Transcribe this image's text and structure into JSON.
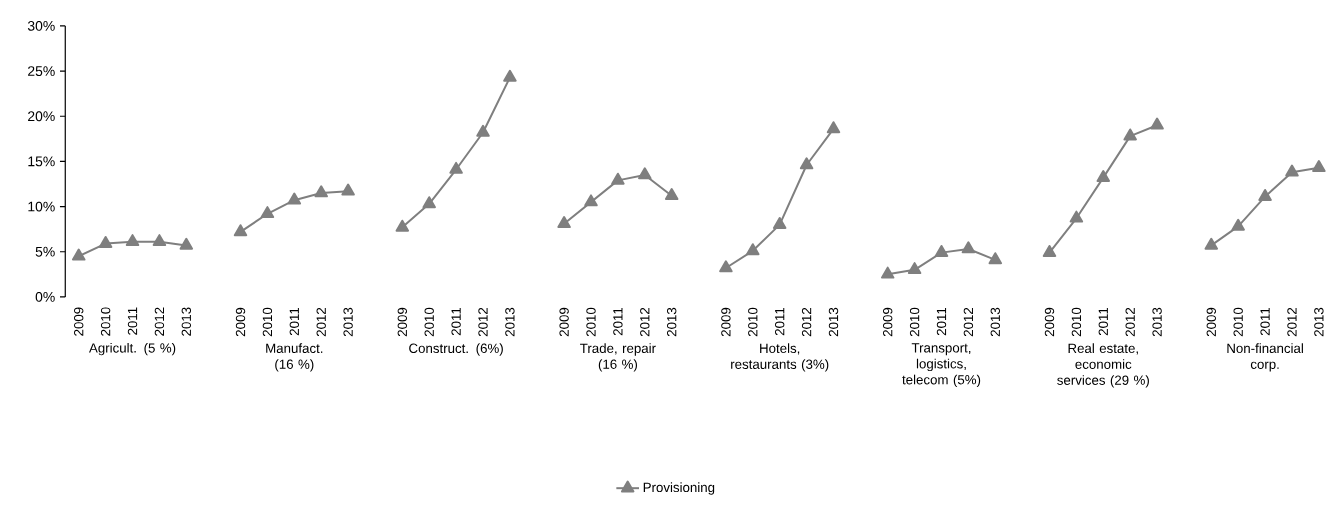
{
  "chart_data": [
    {
      "type": "line",
      "xlabel": "Agricult. (5 %)",
      "categories": [
        "2009",
        "2010",
        "2011",
        "2012",
        "2013"
      ],
      "ylim": [
        0,
        30
      ],
      "yticks": [
        {
          "value": 0,
          "label": "0%"
        },
        {
          "value": 5,
          "label": "5%"
        },
        {
          "value": 10,
          "label": "10%"
        },
        {
          "value": 15,
          "label": "15%"
        },
        {
          "value": 20,
          "label": "20%"
        },
        {
          "value": 25,
          "label": "25%"
        },
        {
          "value": 30,
          "label": "30%"
        }
      ],
      "marker": "triangle",
      "legend": "bottom",
      "series": [
        {
          "name": "Provisioning",
          "color": "#7f7f7f",
          "values": [
            4.5,
            5.9,
            6.1,
            6.1,
            5.7
          ]
        }
      ]
    },
    {
      "type": "line",
      "xlabel": "Manufact. (16 %)",
      "categories": [
        "2009",
        "2010",
        "2011",
        "2012",
        "2013"
      ],
      "ylim": [
        0,
        30
      ],
      "tick_labels": "x",
      "marker": "triangle",
      "series": [
        {
          "color": "#7f7f7f",
          "values": [
            7.2,
            9.2,
            10.7,
            11.5,
            11.7
          ]
        }
      ]
    },
    {
      "type": "line",
      "xlabel": "Construct. (6%)",
      "categories": [
        "2009",
        "2010",
        "2011",
        "2012",
        "2013"
      ],
      "ylim": [
        0,
        30
      ],
      "tick_labels": "x",
      "marker": "triangle",
      "series": [
        {
          "color": "#7f7f7f",
          "values": [
            7.7,
            10.3,
            14.1,
            18.2,
            24.3
          ]
        }
      ]
    },
    {
      "type": "line",
      "xlabel": "Trade, repair (16 %)",
      "categories": [
        "2009",
        "2010",
        "2011",
        "2012",
        "2013"
      ],
      "ylim": [
        0,
        30
      ],
      "tick_labels": "x",
      "marker": "triangle",
      "series": [
        {
          "color": "#7f7f7f",
          "values": [
            8.1,
            10.5,
            12.9,
            13.5,
            11.2
          ]
        }
      ]
    },
    {
      "type": "line",
      "xlabel": "Hotels, restaurants (3%)",
      "categories": [
        "2009",
        "2010",
        "2011",
        "2012",
        "2013"
      ],
      "ylim": [
        0,
        30
      ],
      "tick_labels": "x",
      "marker": "triangle",
      "series": [
        {
          "color": "#7f7f7f",
          "values": [
            3.2,
            5.1,
            8.0,
            14.6,
            18.6
          ]
        }
      ]
    },
    {
      "type": "line",
      "xlabel": "Transport, logistics, telecom (5%)",
      "categories": [
        "2009",
        "2010",
        "2011",
        "2012",
        "2013"
      ],
      "ylim": [
        0,
        30
      ],
      "tick_labels": "x",
      "marker": "triangle",
      "series": [
        {
          "color": "#7f7f7f",
          "values": [
            2.5,
            3.0,
            4.9,
            5.3,
            4.1
          ]
        }
      ]
    },
    {
      "type": "line",
      "xlabel": "Real estate, economic services (29 %)",
      "categories": [
        "2009",
        "2010",
        "2011",
        "2012",
        "2013"
      ],
      "ylim": [
        0,
        30
      ],
      "tick_labels": "x",
      "marker": "triangle",
      "series": [
        {
          "color": "#7f7f7f",
          "values": [
            4.9,
            8.7,
            13.2,
            17.8,
            19.0
          ]
        }
      ]
    },
    {
      "type": "line",
      "xlabel": "Non-financial corp.",
      "categories": [
        "2009",
        "2010",
        "2011",
        "2012",
        "2013"
      ],
      "ylim": [
        0,
        30
      ],
      "tick_labels": "x",
      "marker": "triangle",
      "series": [
        {
          "color": "#7f7f7f",
          "values": [
            5.7,
            7.8,
            11.1,
            13.8,
            14.3
          ]
        }
      ]
    }
  ]
}
